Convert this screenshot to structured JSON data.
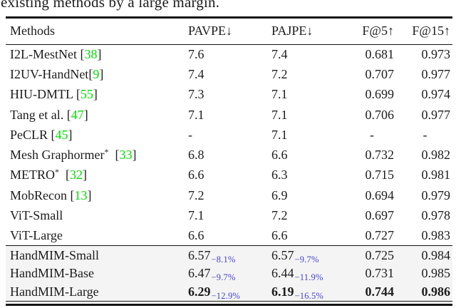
{
  "caption": "existing methods by a large margin.",
  "colors": {
    "citation": "#00dd00",
    "subscript": "#4444d4",
    "highlight_bg": "#f4f4f4",
    "rule": "#151515"
  },
  "table": {
    "headers": [
      "Methods",
      "PAVPE↓",
      "PAJPE↓",
      "F@5↑",
      "F@15↑"
    ],
    "rows": [
      {
        "name": "I2L-MestNet",
        "sup": "",
        "gap": " ",
        "cite": "38",
        "pavpe": "7.6",
        "pavpe_sub": "",
        "pajpe": "7.4",
        "pajpe_sub": "",
        "f5": "0.681",
        "f15": "0.973",
        "bold": false
      },
      {
        "name": "I2UV-HandNet",
        "sup": "",
        "gap": "",
        "cite": "9",
        "pavpe": "7.4",
        "pavpe_sub": "",
        "pajpe": "7.2",
        "pajpe_sub": "",
        "f5": "0.707",
        "f15": "0.977",
        "bold": false
      },
      {
        "name": "HIU-DMTL",
        "sup": "",
        "gap": " ",
        "cite": "55",
        "pavpe": "7.3",
        "pavpe_sub": "",
        "pajpe": "7.1",
        "pajpe_sub": "",
        "f5": "0.699",
        "f15": "0.974",
        "bold": false
      },
      {
        "name": "Tang et al.",
        "sup": "",
        "gap": " ",
        "cite": "47",
        "pavpe": "7.1",
        "pavpe_sub": "",
        "pajpe": "7.1",
        "pajpe_sub": "",
        "f5": "0.706",
        "f15": "0.977",
        "bold": false
      },
      {
        "name": "PeCLR",
        "sup": "",
        "gap": " ",
        "cite": "45",
        "pavpe": "-",
        "pavpe_sub": "",
        "pajpe": "7.1",
        "pajpe_sub": "",
        "f5": "-",
        "f15": "-",
        "bold": false
      },
      {
        "name": "Mesh Graphormer",
        "sup": "*",
        "gap": "  ",
        "cite": "33",
        "pavpe": "6.8",
        "pavpe_sub": "",
        "pajpe": "6.6",
        "pajpe_sub": "",
        "f5": "0.732",
        "f15": "0.982",
        "bold": false
      },
      {
        "name": "METRO",
        "sup": "*",
        "gap": "  ",
        "cite": "32",
        "pavpe": "6.6",
        "pavpe_sub": "",
        "pajpe": "6.3",
        "pajpe_sub": "",
        "f5": "0.715",
        "f15": "0.981",
        "bold": false
      },
      {
        "name": "MobRecon",
        "sup": "",
        "gap": " ",
        "cite": "13",
        "pavpe": "7.2",
        "pavpe_sub": "",
        "pajpe": "6.9",
        "pajpe_sub": "",
        "f5": "0.694",
        "f15": "0.979",
        "bold": false
      },
      {
        "name": "ViT-Small",
        "sup": "",
        "gap": "",
        "cite": null,
        "pavpe": "7.1",
        "pavpe_sub": "",
        "pajpe": "7.2",
        "pajpe_sub": "",
        "f5": "0.697",
        "f15": "0.978",
        "bold": false
      },
      {
        "name": "ViT-Large",
        "sup": "",
        "gap": "",
        "cite": null,
        "pavpe": "6.6",
        "pavpe_sub": "",
        "pajpe": "6.6",
        "pajpe_sub": "",
        "f5": "0.727",
        "f15": "0.983",
        "bold": false
      }
    ],
    "highlight_rows": [
      {
        "name": "HandMIM-Small",
        "sup": "",
        "gap": "",
        "cite": null,
        "pavpe": "6.57",
        "pavpe_sub": "−8.1%",
        "pajpe": "6.57",
        "pajpe_sub": "−9.7%",
        "f5": "0.725",
        "f15": "0.984",
        "bold": false
      },
      {
        "name": "HandMIM-Base",
        "sup": "",
        "gap": "",
        "cite": null,
        "pavpe": "6.47",
        "pavpe_sub": "−9.7%",
        "pajpe": "6.44",
        "pajpe_sub": "−11.9%",
        "f5": "0.731",
        "f15": "0.985",
        "bold": false
      },
      {
        "name": "HandMIM-Large",
        "sup": "",
        "gap": "",
        "cite": null,
        "pavpe": "6.29",
        "pavpe_sub": "−12.9%",
        "pajpe": "6.19",
        "pajpe_sub": "−16.5%",
        "f5": "0.744",
        "f15": "0.986",
        "bold": true
      }
    ]
  }
}
